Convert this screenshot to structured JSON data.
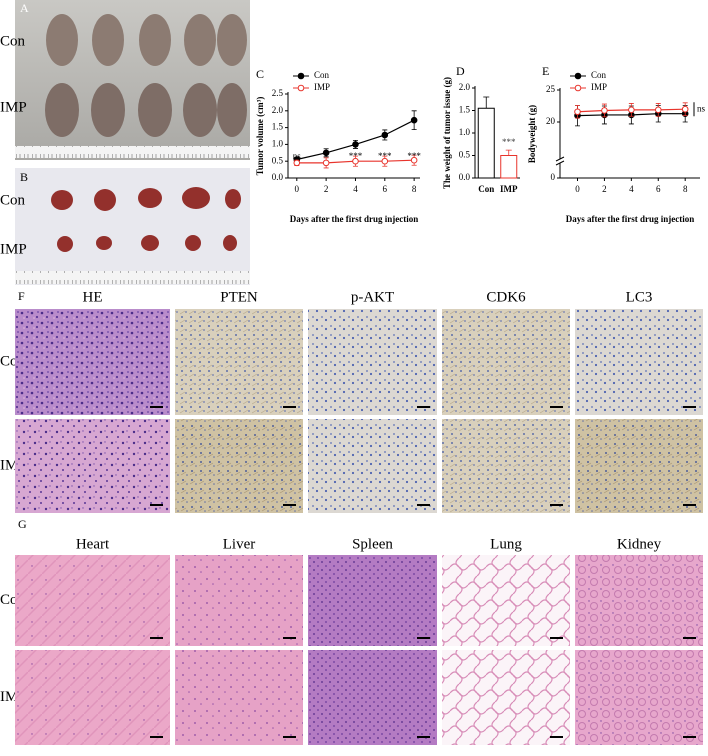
{
  "panel_labels": [
    "A",
    "B",
    "C",
    "D",
    "E",
    "F",
    "G"
  ],
  "photo_rows": [
    "Con",
    "IMP"
  ],
  "chart_data": [
    {
      "type": "line",
      "xlabel": "Days after the first drug injection",
      "ylabel": "Tumor volume (cm³)",
      "x": [
        0,
        2,
        4,
        6,
        8
      ],
      "xlim": [
        -0.6,
        8.4
      ],
      "xticks": [
        0,
        2,
        4,
        6,
        8
      ],
      "ylim": [
        0,
        2.5
      ],
      "yticks": [
        {
          "value": 0,
          "label": "0.0"
        },
        0.5,
        {
          "value": 1,
          "label": "1.0"
        },
        1.5,
        {
          "value": 2,
          "label": "2.0"
        },
        2.5
      ],
      "series": [
        {
          "name": "Con",
          "color": "#000000",
          "marker": "filled",
          "values": [
            0.55,
            0.75,
            1.0,
            1.28,
            1.72
          ],
          "errors": [
            0.06,
            0.12,
            0.12,
            0.15,
            0.28
          ]
        },
        {
          "name": "IMP",
          "color": "#e8342c",
          "marker": "open",
          "values": [
            0.45,
            0.45,
            0.5,
            0.5,
            0.53
          ],
          "errors": [
            0.08,
            0.15,
            0.15,
            0.15,
            0.15
          ]
        }
      ],
      "annotations": [
        "ns",
        "*",
        "***",
        "***",
        "***"
      ],
      "legend": "upper left"
    },
    {
      "type": "bar",
      "ylabel": "The weight of tumor issue (g)",
      "categories": [
        "Con",
        "IMP"
      ],
      "values": [
        1.55,
        0.5
      ],
      "errors": [
        0.25,
        0.12
      ],
      "colors": [
        "#000000",
        "#e8342c"
      ],
      "ylim": [
        0,
        2
      ],
      "yticks": [
        {
          "value": 0,
          "label": "0.0"
        },
        0.5,
        {
          "value": 1,
          "label": "1.0"
        },
        1.5,
        {
          "value": 2,
          "label": "2.0"
        }
      ],
      "annotation": "***"
    },
    {
      "type": "line",
      "xlabel": "Days after the first drug injection",
      "ylabel": "Bodyweight (g)",
      "x": [
        0,
        2,
        4,
        6,
        8
      ],
      "xlim": [
        -1.3,
        9.1
      ],
      "xticks": [
        0,
        2,
        4,
        6,
        8
      ],
      "ylim": [
        15,
        25
      ],
      "yticks": [
        20,
        25
      ],
      "lower_yticks": [
        0
      ],
      "broken_axis": true,
      "series": [
        {
          "name": "Con",
          "color": "#000000",
          "marker": "filled",
          "values": [
            21.0,
            21.1,
            21.1,
            21.3,
            21.3
          ],
          "errors": [
            1.6,
            1.4,
            1.4,
            1.3,
            1.3
          ]
        },
        {
          "name": "IMP",
          "color": "#e8342c",
          "marker": "open",
          "values": [
            21.6,
            21.8,
            21.9,
            21.9,
            22.0
          ],
          "errors": [
            1.0,
            1.0,
            1.0,
            1.0,
            1.0
          ]
        }
      ],
      "annotation": "ns",
      "legend": "upper left"
    }
  ],
  "histology_f": {
    "columns": [
      "HE",
      "PTEN",
      "p-AKT",
      "CDK6",
      "LC3"
    ],
    "rows": [
      "Con",
      "IMP"
    ]
  },
  "histology_g": {
    "columns": [
      "Heart",
      "Liver",
      "Spleen",
      "Lung",
      "Kidney"
    ],
    "rows": [
      "Con",
      "IMP"
    ]
  }
}
